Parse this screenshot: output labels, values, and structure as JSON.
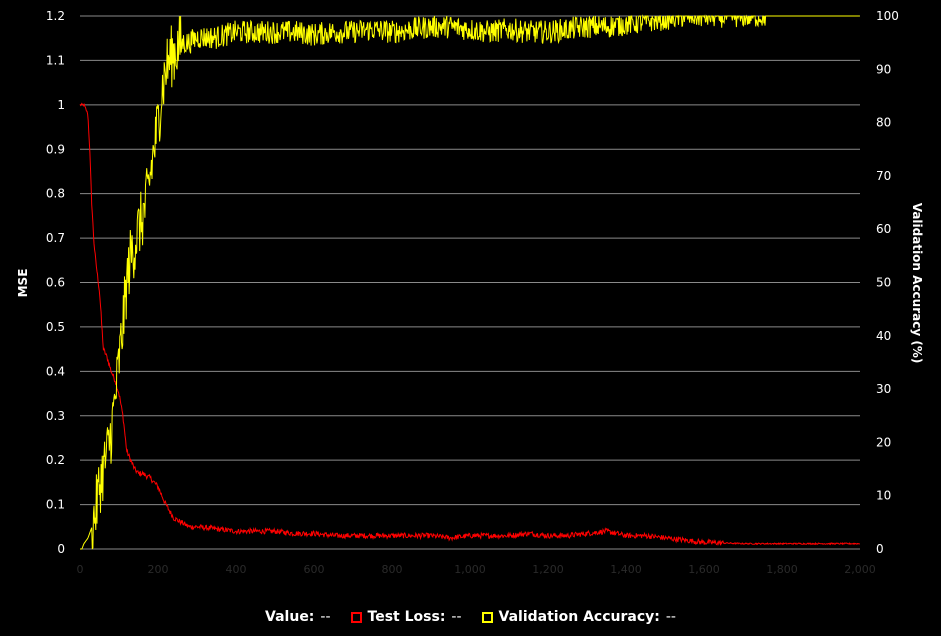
{
  "chart_data": {
    "type": "line",
    "xlabel": "",
    "ylabel": "MSE",
    "y2label": "Validation Accuracy (%)",
    "xlim": [
      0,
      2000
    ],
    "ylim": [
      0,
      1.2
    ],
    "y2lim": [
      0,
      100
    ],
    "x_ticks": [
      "0",
      "200",
      "400",
      "600",
      "800",
      "1,000",
      "1,200",
      "1,400",
      "1,600",
      "1,800",
      "2,000"
    ],
    "y_ticks": [
      "0",
      "0.1",
      "0.2",
      "0.3",
      "0.4",
      "0.5",
      "0.6",
      "0.7",
      "0.8",
      "0.9",
      "1",
      "1.1",
      "1.2"
    ],
    "y2_ticks": [
      "0",
      "10",
      "20",
      "30",
      "40",
      "50",
      "60",
      "70",
      "80",
      "90",
      "100"
    ],
    "grid": true,
    "legend_position": "bottom-center",
    "colors": {
      "background": "#000000",
      "grid": "#8a8a8a",
      "test_loss": "#ff0000",
      "val_acc": "#ffff00"
    },
    "series": [
      {
        "name": "Test Loss",
        "axis": "left",
        "x": [
          0,
          10,
          20,
          25,
          30,
          35,
          40,
          50,
          60,
          65,
          70,
          80,
          90,
          100,
          110,
          120,
          130,
          140,
          150,
          160,
          180,
          200,
          220,
          240,
          260,
          280,
          300,
          350,
          400,
          450,
          500,
          550,
          600,
          650,
          700,
          750,
          800,
          850,
          900,
          950,
          1000,
          1050,
          1100,
          1150,
          1200,
          1250,
          1300,
          1350,
          1400,
          1450,
          1500,
          1550,
          1600,
          1700,
          1800,
          1900,
          2000
        ],
        "y": [
          1.0,
          1.0,
          0.98,
          0.9,
          0.78,
          0.7,
          0.65,
          0.58,
          0.45,
          0.44,
          0.43,
          0.4,
          0.38,
          0.35,
          0.3,
          0.22,
          0.2,
          0.18,
          0.17,
          0.17,
          0.16,
          0.14,
          0.1,
          0.07,
          0.06,
          0.05,
          0.05,
          0.045,
          0.04,
          0.04,
          0.04,
          0.035,
          0.035,
          0.03,
          0.03,
          0.03,
          0.03,
          0.03,
          0.03,
          0.025,
          0.03,
          0.03,
          0.03,
          0.035,
          0.03,
          0.03,
          0.035,
          0.04,
          0.03,
          0.03,
          0.025,
          0.02,
          0.015,
          0.012,
          0.012,
          0.012,
          0.012
        ]
      },
      {
        "name": "Validation Accuracy",
        "axis": "right",
        "x": [
          0,
          5,
          10,
          20,
          30,
          40,
          50,
          60,
          70,
          80,
          90,
          100,
          110,
          120,
          130,
          140,
          150,
          160,
          170,
          180,
          190,
          200,
          210,
          220,
          230,
          240,
          250,
          260,
          280,
          300,
          350,
          400,
          450,
          500,
          550,
          600,
          650,
          700,
          750,
          800,
          850,
          900,
          950,
          1000,
          1050,
          1100,
          1150,
          1200,
          1250,
          1300,
          1350,
          1400,
          1450,
          1500,
          1550,
          1600,
          1650,
          1700,
          1750,
          1800,
          1850,
          1900,
          1950,
          2000
        ],
        "y": [
          0,
          0,
          1,
          2,
          4,
          7,
          12,
          15,
          18,
          22,
          28,
          35,
          42,
          50,
          55,
          57,
          60,
          62,
          65,
          70,
          75,
          80,
          86,
          90,
          92,
          93,
          94,
          95,
          95,
          96,
          96,
          97,
          97,
          97,
          97,
          96.5,
          97,
          97,
          97.5,
          97,
          97.5,
          98,
          98,
          97.5,
          97,
          97.5,
          97,
          97,
          97.5,
          98,
          98,
          98.5,
          99,
          99.5,
          100,
          100,
          100,
          100,
          100,
          100,
          100,
          100,
          100,
          100
        ]
      }
    ]
  },
  "legend": {
    "value_label": "Value:",
    "value_value": "--",
    "loss_label": "Test Loss:",
    "loss_value": "--",
    "acc_label": "Validation Accuracy:",
    "acc_value": "--"
  }
}
